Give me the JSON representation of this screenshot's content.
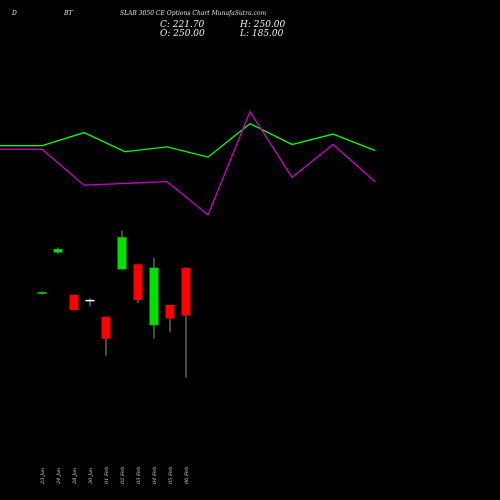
{
  "header": {
    "left": "D",
    "mid": "BT",
    "title": "SLAB 3050  CE Options  Chart MunafaSutra.com"
  },
  "ohlc": {
    "close": "C: 221.70",
    "high": "H: 250.00",
    "open": "O: 250.00",
    "low": "L: 185.00"
  },
  "chart_data": {
    "type": "candlestick",
    "categories": [
      "23 Jan",
      "24 Jan",
      "28 Jan",
      "30 Jan",
      "01 Feb",
      "02 Feb",
      "03 Feb",
      "04 Feb",
      "05 Feb",
      "06 Feb"
    ],
    "colors": {
      "up": "#00e000",
      "down": "#ff0000",
      "line_green": "#00ff00",
      "line_purple": "#cc00cc"
    },
    "candles": [
      {
        "open": 235,
        "high": 236,
        "low": 234,
        "close": 235.5,
        "dir": "up"
      },
      {
        "open": 259,
        "high": 262,
        "low": 258,
        "close": 261,
        "dir": "up"
      },
      {
        "open": 234,
        "high": 234,
        "low": 225,
        "close": 225,
        "dir": "down"
      },
      {
        "open": 231,
        "high": 232,
        "low": 227,
        "close": 231,
        "dir": "doji"
      },
      {
        "open": 221,
        "high": 221,
        "low": 198,
        "close": 208,
        "dir": "down"
      },
      {
        "open": 249,
        "high": 272,
        "low": 249,
        "close": 268,
        "dir": "up"
      },
      {
        "open": 252,
        "high": 252,
        "low": 229,
        "close": 231,
        "dir": "down"
      },
      {
        "open": 216,
        "high": 256,
        "low": 208,
        "close": 250,
        "dir": "up"
      },
      {
        "open": 228,
        "high": 228,
        "low": 212,
        "close": 220,
        "dir": "down"
      },
      {
        "open": 250,
        "high": 250,
        "low": 185,
        "close": 221.7,
        "dir": "down"
      }
    ],
    "ylim": [
      160,
      290
    ],
    "line_green": [
      18.0,
      18.0,
      40.0,
      8.0,
      16.0,
      -1.0,
      55.0,
      20.0,
      37.5,
      10.0
    ],
    "line_purple": [
      12.0,
      12.0,
      -48.0,
      -45.0,
      -42.0,
      -98.0,
      75.0,
      -35.0,
      20.0,
      -42.0
    ],
    "lines_ylim": [
      -190,
      195
    ]
  }
}
